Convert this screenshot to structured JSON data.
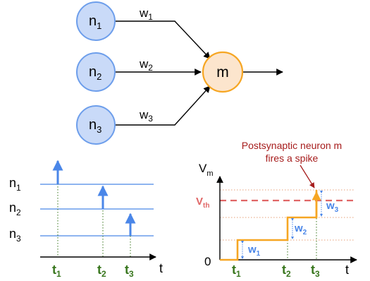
{
  "network": {
    "inputs": [
      {
        "base": "n",
        "sub": "1",
        "weight_base": "w",
        "weight_sub": "1"
      },
      {
        "base": "n",
        "sub": "2",
        "weight_base": "w",
        "weight_sub": "2"
      },
      {
        "base": "n",
        "sub": "3",
        "weight_base": "w",
        "weight_sub": "3"
      }
    ],
    "output": {
      "label": "m"
    },
    "colors": {
      "input_fill": "#c9daf8",
      "input_stroke": "#6d9eeb",
      "output_fill": "#fce5cd",
      "output_stroke": "#f6a623"
    }
  },
  "raster": {
    "rows": [
      {
        "base": "n",
        "sub": "1"
      },
      {
        "base": "n",
        "sub": "2"
      },
      {
        "base": "n",
        "sub": "3"
      }
    ],
    "times": [
      {
        "base": "t",
        "sub": "1"
      },
      {
        "base": "t",
        "sub": "2"
      },
      {
        "base": "t",
        "sub": "3"
      }
    ],
    "axis_label": "t",
    "colors": {
      "line": "#4a86e8",
      "spike": "#4a86e8",
      "time": "#38761d"
    }
  },
  "potential": {
    "ylabel_base": "V",
    "ylabel_sub": "m",
    "threshold_base": "V",
    "threshold_sub": "th",
    "zero_label": "0",
    "axis_label": "t",
    "times": [
      {
        "base": "t",
        "sub": "1"
      },
      {
        "base": "t",
        "sub": "2"
      },
      {
        "base": "t",
        "sub": "3"
      }
    ],
    "steps": [
      {
        "base": "w",
        "sub": "1"
      },
      {
        "base": "w",
        "sub": "2"
      },
      {
        "base": "w",
        "sub": "3"
      }
    ],
    "annotation_line1": "Postsynaptic neuron m",
    "annotation_line2": "fires a spike",
    "colors": {
      "trace": "#f6a623",
      "threshold": "#e06666",
      "guide": "#e6a07a",
      "step_label": "#4a86e8",
      "annotation": "#a61c1c",
      "time": "#38761d"
    }
  }
}
